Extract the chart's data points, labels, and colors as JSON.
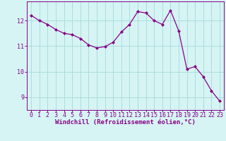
{
  "x": [
    0,
    1,
    2,
    3,
    4,
    5,
    6,
    7,
    8,
    9,
    10,
    11,
    12,
    13,
    14,
    15,
    16,
    17,
    18,
    19,
    20,
    21,
    22,
    23
  ],
  "y": [
    12.2,
    12.0,
    11.85,
    11.65,
    11.5,
    11.45,
    11.3,
    11.05,
    10.93,
    10.98,
    11.15,
    11.55,
    11.85,
    12.35,
    12.3,
    12.0,
    11.85,
    12.4,
    11.6,
    10.1,
    10.2,
    9.8,
    9.25,
    8.85
  ],
  "line_color": "#880088",
  "marker": "D",
  "marker_size": 2.0,
  "bg_color": "#d6f4f4",
  "grid_color": "#aadddd",
  "xlabel": "Windchill (Refroidissement éolien,°C)",
  "ylim": [
    8.5,
    12.75
  ],
  "xlim": [
    -0.5,
    23.5
  ],
  "yticks": [
    9,
    10,
    11,
    12
  ],
  "xticks": [
    0,
    1,
    2,
    3,
    4,
    5,
    6,
    7,
    8,
    9,
    10,
    11,
    12,
    13,
    14,
    15,
    16,
    17,
    18,
    19,
    20,
    21,
    22,
    23
  ],
  "line_color_hex": "#880088",
  "tick_color": "#880088",
  "label_fontsize": 6.0,
  "tick_fontsize": 6.0,
  "xlabel_fontsize": 6.5
}
